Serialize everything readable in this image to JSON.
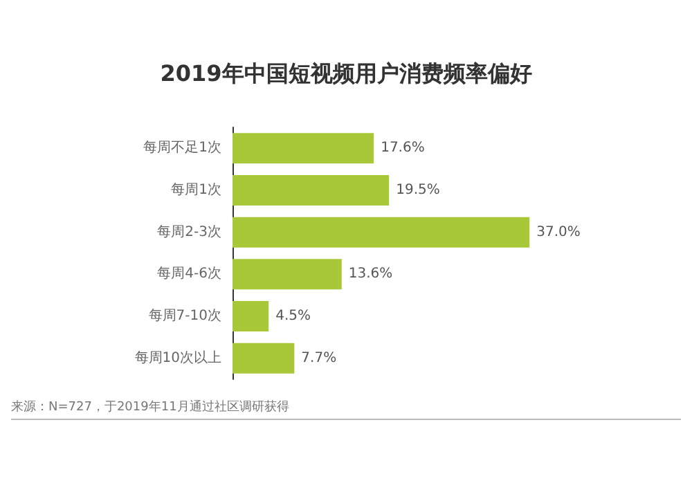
{
  "chart_data": {
    "type": "bar",
    "orientation": "horizontal",
    "title": "2019年中国短视频用户消费频率偏好",
    "categories": [
      "每周不足1次",
      "每周1次",
      "每周2-3次",
      "每周4-6次",
      "每周7-10次",
      "每周10次以上"
    ],
    "values": [
      17.6,
      19.5,
      37.0,
      13.6,
      4.5,
      7.7
    ],
    "value_labels": [
      "17.6%",
      "19.5%",
      "37.0%",
      "13.6%",
      "4.5%",
      "7.7%"
    ],
    "color": "#a8c83a",
    "annotations": [
      "来源：N=727，于2019年11月通过社区调研获得"
    ]
  }
}
